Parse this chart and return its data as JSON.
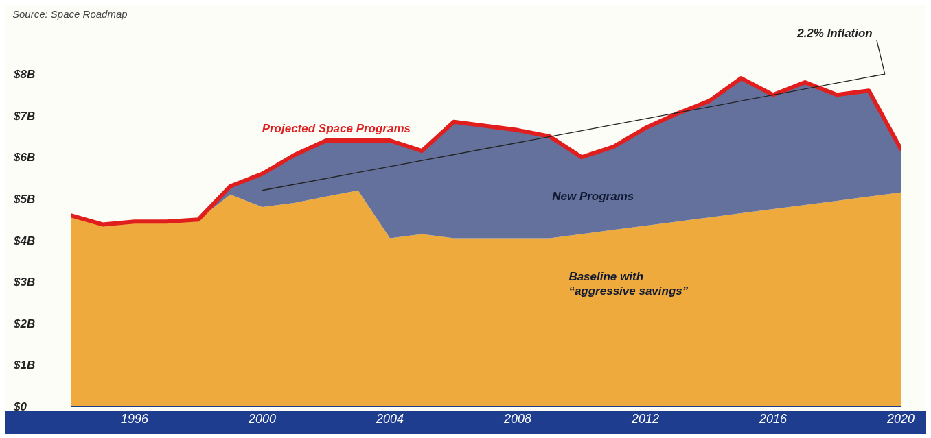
{
  "chart_data": {
    "type": "area",
    "stacked": true,
    "annotations": [
      "Source: Space Roadmap"
    ],
    "x": [
      1994,
      1995,
      1996,
      1997,
      1998,
      1999,
      2000,
      2001,
      2002,
      2003,
      2004,
      2005,
      2006,
      2007,
      2008,
      2009,
      2010,
      2011,
      2012,
      2013,
      2014,
      2015,
      2016,
      2017,
      2018,
      2019,
      2020
    ],
    "series": [
      {
        "name": "Baseline with\n“aggressive savings”",
        "color": "#eeaa3c",
        "values": [
          4.6,
          4.38,
          4.45,
          4.45,
          4.5,
          5.1,
          4.8,
          4.9,
          5.05,
          5.2,
          4.05,
          4.15,
          4.05,
          4.05,
          4.05,
          4.05,
          4.15,
          4.25,
          4.35,
          4.45,
          4.55,
          4.65,
          4.75,
          4.85,
          4.95,
          5.05,
          5.15
        ]
      },
      {
        "name": "New Programs",
        "color": "#64719c",
        "values": [
          0,
          0,
          0,
          0,
          0,
          0.2,
          0.8,
          1.15,
          1.35,
          1.2,
          2.35,
          2.0,
          2.8,
          2.7,
          2.6,
          2.45,
          1.85,
          2.0,
          2.35,
          2.6,
          2.8,
          3.25,
          2.75,
          2.95,
          2.55,
          2.55,
          1.05
        ]
      },
      {
        "name": "Projected Space Programs",
        "type": "line",
        "color": "#e01e1e",
        "values": [
          4.6,
          4.38,
          4.45,
          4.45,
          4.5,
          5.3,
          5.6,
          6.05,
          6.4,
          6.4,
          6.4,
          6.15,
          6.85,
          6.75,
          6.65,
          6.5,
          6.0,
          6.25,
          6.7,
          7.05,
          7.35,
          7.9,
          7.5,
          7.8,
          7.5,
          7.6,
          6.2
        ]
      },
      {
        "name": "2.2% Inflation",
        "type": "line",
        "color": "#222222",
        "x": [
          2000,
          2019.5
        ],
        "values": [
          5.2,
          8.0
        ]
      }
    ],
    "xlim": [
      1994,
      2020
    ],
    "xticks": [
      1996,
      2000,
      2004,
      2008,
      2012,
      2016,
      2020
    ],
    "ylim": [
      0,
      8
    ],
    "yticks": [
      {
        "value": 0,
        "label": "$0"
      },
      {
        "value": 1,
        "label": "$1B"
      },
      {
        "value": 2,
        "label": "$2B"
      },
      {
        "value": 3,
        "label": "$3B"
      },
      {
        "value": 4,
        "label": "$4B"
      },
      {
        "value": 5,
        "label": "$5B"
      },
      {
        "value": 6,
        "label": "$6B"
      },
      {
        "value": 7,
        "label": "$7B"
      },
      {
        "value": 8,
        "label": "$8B"
      }
    ],
    "grid": false,
    "legend": false,
    "marker": "none"
  }
}
